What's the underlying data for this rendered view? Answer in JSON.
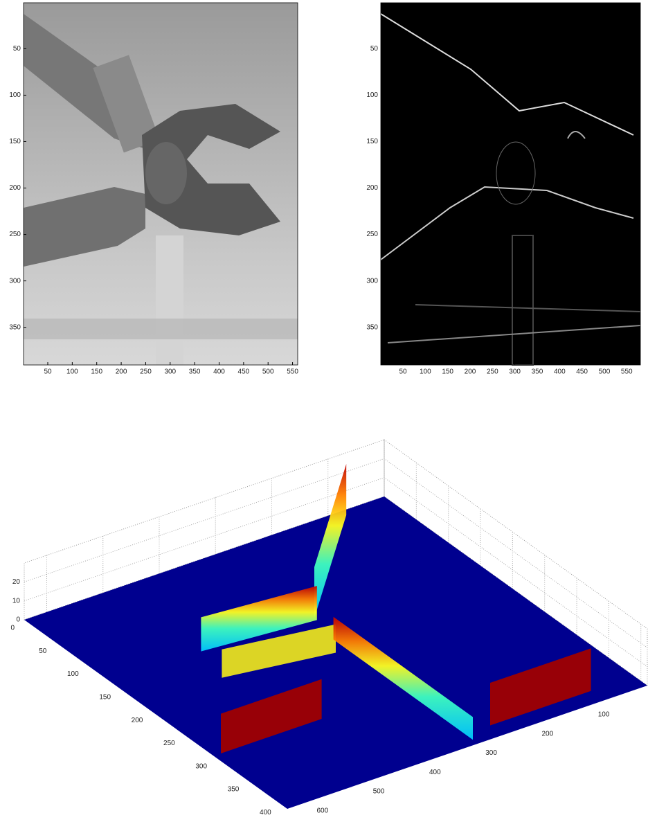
{
  "chart_data": [
    {
      "type": "image",
      "xlim": [
        0.5,
        560.5
      ],
      "ylim": [
        0.5,
        390.5
      ],
      "xticks": [
        50,
        100,
        150,
        200,
        250,
        300,
        350,
        400,
        450,
        500,
        550
      ],
      "yticks": [
        50,
        100,
        150,
        200,
        250,
        300,
        350
      ]
    },
    {
      "type": "image",
      "xlim": [
        0.5,
        580.5
      ],
      "ylim": [
        0.5,
        390.5
      ],
      "xticks": [
        50,
        100,
        150,
        200,
        250,
        300,
        350,
        400,
        450,
        500,
        550
      ],
      "yticks": [
        50,
        100,
        150,
        200,
        250,
        300,
        350
      ]
    },
    {
      "type": "surface",
      "xlim": [
        0,
        640
      ],
      "ylim": [
        0,
        410
      ],
      "zlim": [
        0,
        30
      ],
      "xticks": [
        100,
        200,
        300,
        400,
        500,
        600
      ],
      "yticks": [
        0,
        50,
        100,
        150,
        200,
        250,
        300,
        350,
        400
      ],
      "zticks": [
        0,
        10,
        20
      ]
    }
  ]
}
